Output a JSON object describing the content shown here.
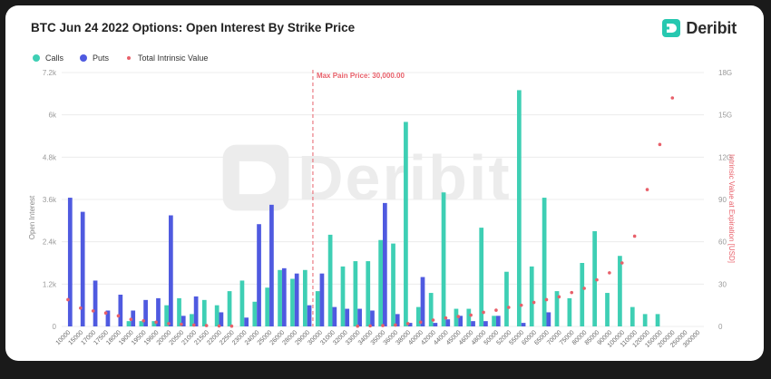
{
  "title": "BTC Jun 24 2022 Options: Open Interest By Strike Price",
  "brand": {
    "name": "Deribit",
    "icon": "deribit-logo-icon",
    "color": "#27c8b0"
  },
  "legend": [
    {
      "label": "Calls",
      "color": "#3ecfb4"
    },
    {
      "label": "Puts",
      "color": "#4f5ae0"
    },
    {
      "label": "Total Intrinsic Value",
      "color": "#e8606a"
    }
  ],
  "colors": {
    "calls": "#3ecfb4",
    "puts": "#4f5ae0",
    "intrinsic": "#e8606a",
    "maxpain": "#e8606a"
  },
  "chart_data": {
    "type": "bar",
    "ylabel": "Open Interest",
    "y2label": "Intrinsic Value at Expiration [USD]",
    "ylim": [
      0,
      7200
    ],
    "y2lim": [
      0,
      1800000000
    ],
    "yticks": [
      "0",
      "1.2k",
      "2.4k",
      "3.6k",
      "4.8k",
      "6k",
      "7.2k"
    ],
    "y2ticks": [
      "0",
      "300",
      "600",
      "900",
      "1200",
      "1500",
      "1800"
    ],
    "y2ticks_display": [
      "0",
      "30",
      "60",
      "90",
      "12G",
      "15G",
      "18G"
    ],
    "max_pain_label": "Max Pain Price: 30,000.00",
    "max_pain_strike": "30000",
    "categories": [
      "10000",
      "15000",
      "17000",
      "17500",
      "18000",
      "19000",
      "19500",
      "19600",
      "20000",
      "20500",
      "21000",
      "21500",
      "22000",
      "22500",
      "23000",
      "24000",
      "25000",
      "26000",
      "28000",
      "29000",
      "30000",
      "31000",
      "32000",
      "33000",
      "34000",
      "35000",
      "36000",
      "38000",
      "40000",
      "42000",
      "44000",
      "45000",
      "46000",
      "48000",
      "50000",
      "52000",
      "55000",
      "60000",
      "65000",
      "70000",
      "75000",
      "80000",
      "85000",
      "90000",
      "100000",
      "110000",
      "120000",
      "150000",
      "200000",
      "250000",
      "300000"
    ],
    "tick_labels": [
      "10000",
      "15000",
      "17000",
      "17500",
      "18000",
      "19000",
      "19500",
      "19600",
      "20000",
      "20500",
      "21000",
      "21500",
      "22000",
      "22500",
      "23000",
      "24000",
      "25000",
      "26000",
      "28000",
      "29000",
      "30000",
      "31000",
      "32000",
      "33000",
      "34000",
      "35000",
      "36000",
      "38000",
      "40000",
      "42000",
      "44000",
      "45000",
      "46000",
      "48000",
      "50000",
      "52000",
      "55000",
      "60000",
      "65000",
      "70000",
      "75000",
      "80000",
      "85000",
      "90000",
      "100000",
      "110000",
      "120000",
      "150000",
      "200000",
      "250000",
      "300000"
    ],
    "series": [
      {
        "name": "Calls",
        "values": [
          0,
          0,
          0,
          0,
          0,
          150,
          150,
          150,
          600,
          800,
          350,
          750,
          600,
          1000,
          1300,
          700,
          1100,
          1600,
          1350,
          1600,
          1000,
          2600,
          1700,
          1850,
          1850,
          2450,
          2350,
          5800,
          550,
          950,
          3800,
          500,
          500,
          2800,
          300,
          1550,
          6700,
          1700,
          3650,
          1000,
          800,
          1800,
          2700,
          950,
          2000,
          550,
          350,
          350,
          0,
          0,
          0
        ]
      },
      {
        "name": "Puts",
        "values": [
          3650,
          3250,
          1300,
          450,
          900,
          450,
          750,
          800,
          3150,
          300,
          850,
          0,
          400,
          0,
          250,
          2900,
          3450,
          1650,
          1500,
          600,
          1500,
          550,
          500,
          500,
          450,
          3500,
          350,
          100,
          1400,
          100,
          200,
          300,
          150,
          150,
          300,
          0,
          100,
          0,
          400,
          0,
          0,
          0,
          0,
          0,
          0,
          0,
          0,
          0,
          0,
          0,
          0
        ]
      },
      {
        "name": "Total Intrinsic Value",
        "values": [
          190,
          130,
          110,
          95,
          75,
          50,
          40,
          30,
          20,
          15,
          10,
          6,
          3,
          2,
          0,
          0,
          0,
          0,
          0,
          0,
          0,
          0,
          0,
          2,
          4,
          6,
          10,
          20,
          30,
          45,
          60,
          70,
          80,
          100,
          115,
          135,
          150,
          170,
          190,
          210,
          240,
          270,
          330,
          380,
          450,
          640,
          970,
          1290,
          1620,
          0,
          0
        ]
      }
    ]
  }
}
